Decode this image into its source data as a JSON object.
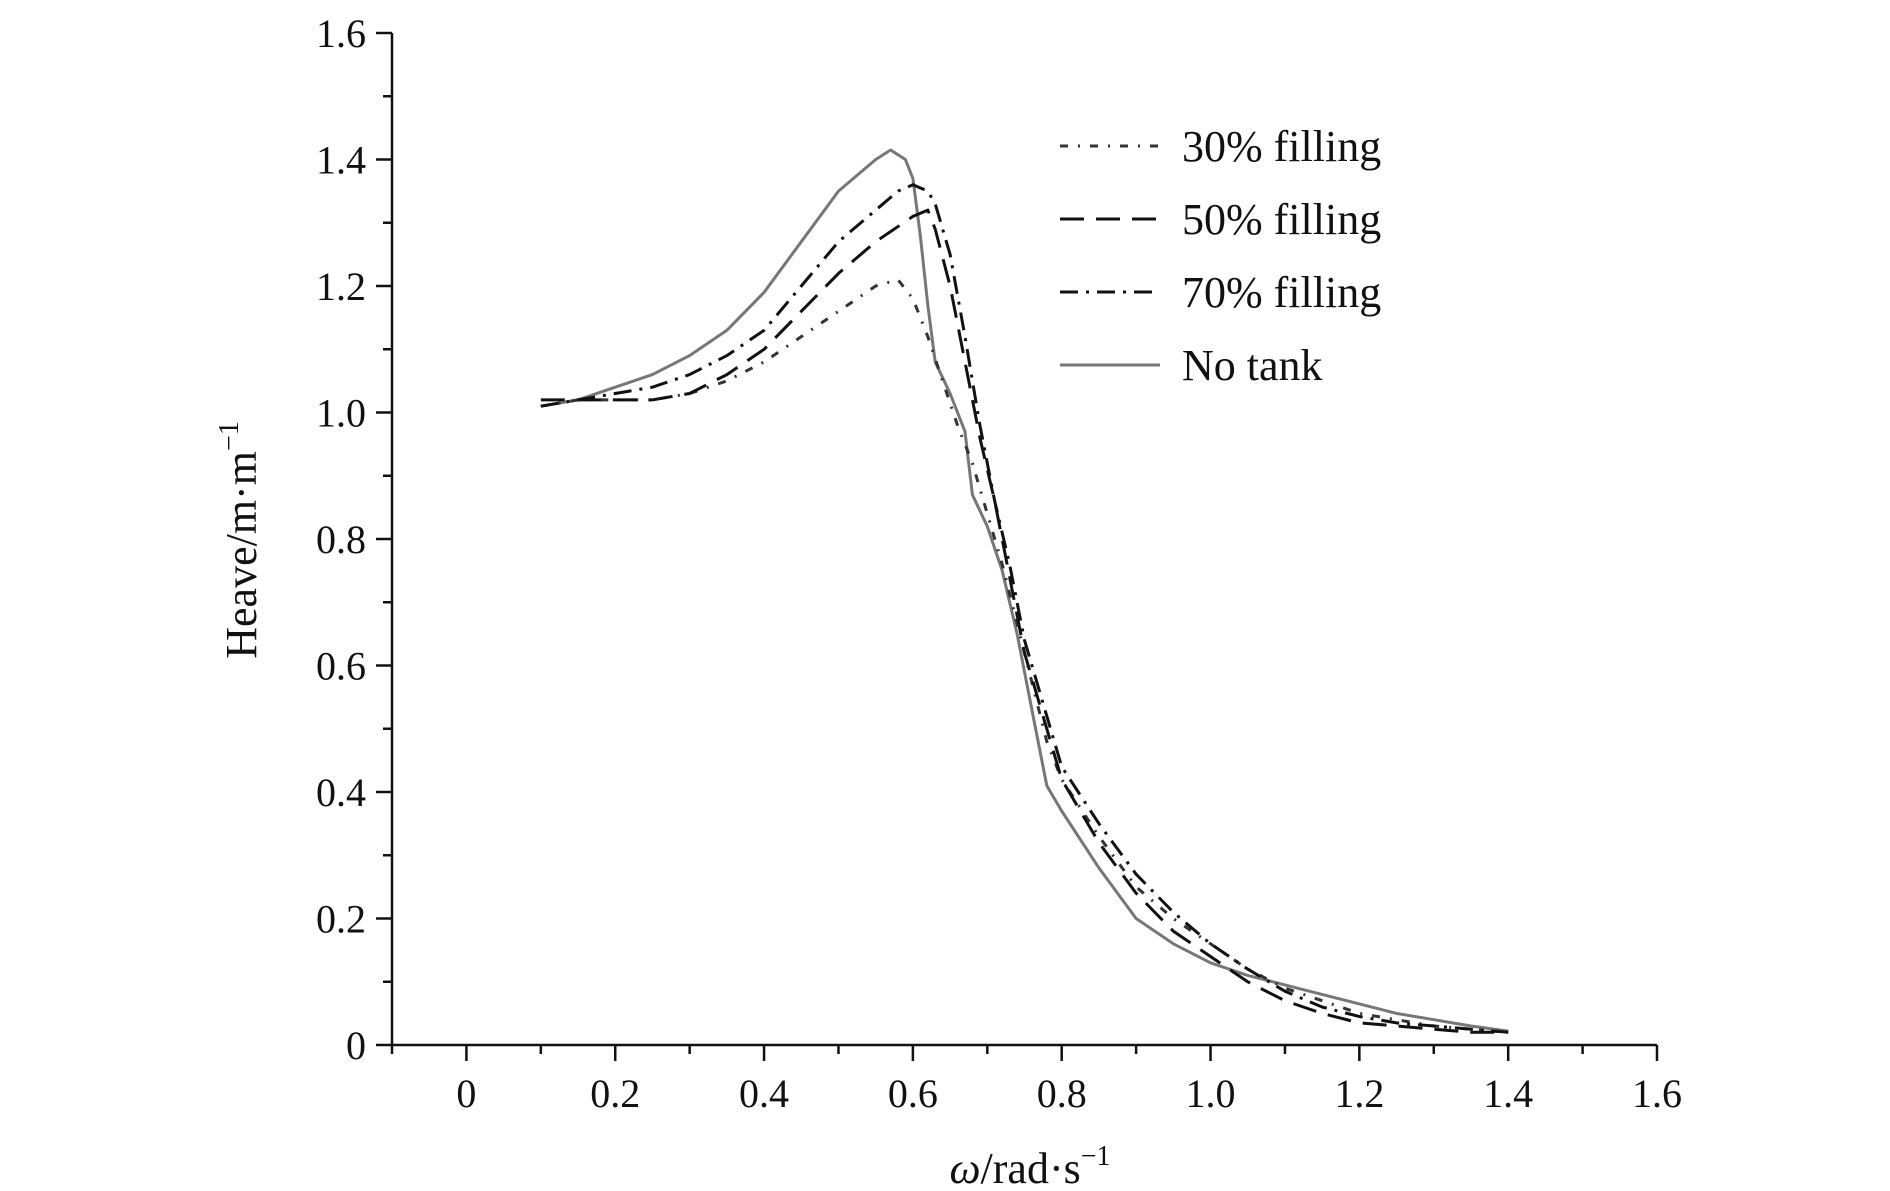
{
  "chart_data": {
    "type": "line",
    "title": "",
    "xlabel": "ω/rad·s",
    "xlabel_sup": "−1",
    "ylabel": "Heave/m·m",
    "ylabel_sup": "−1",
    "xlim": [
      -0.1,
      1.6
    ],
    "ylim": [
      0,
      1.6
    ],
    "xticks": [
      "0",
      "0.2",
      "0.4",
      "0.6",
      "0.8",
      "1.0",
      "1.2",
      "1.4",
      "1.6"
    ],
    "yticks": [
      "0",
      "0.2",
      "0.4",
      "0.6",
      "0.8",
      "1.0",
      "1.2",
      "1.4",
      "1.6"
    ],
    "grid": false,
    "legend_position": "top-right",
    "series": [
      {
        "name": "30% filling",
        "color": "#333333",
        "dash": "8,10,2,10",
        "points": [
          [
            0.1,
            1.01
          ],
          [
            0.15,
            1.02
          ],
          [
            0.2,
            1.02
          ],
          [
            0.25,
            1.02
          ],
          [
            0.3,
            1.03
          ],
          [
            0.35,
            1.05
          ],
          [
            0.4,
            1.08
          ],
          [
            0.45,
            1.12
          ],
          [
            0.5,
            1.16
          ],
          [
            0.55,
            1.2
          ],
          [
            0.58,
            1.21
          ],
          [
            0.6,
            1.18
          ],
          [
            0.62,
            1.12
          ],
          [
            0.64,
            1.05
          ],
          [
            0.66,
            0.98
          ],
          [
            0.68,
            0.92
          ],
          [
            0.7,
            0.84
          ],
          [
            0.72,
            0.76
          ],
          [
            0.75,
            0.62
          ],
          [
            0.78,
            0.48
          ],
          [
            0.8,
            0.42
          ],
          [
            0.85,
            0.33
          ],
          [
            0.9,
            0.25
          ],
          [
            0.95,
            0.2
          ],
          [
            1.0,
            0.16
          ],
          [
            1.05,
            0.12
          ],
          [
            1.1,
            0.09
          ],
          [
            1.15,
            0.07
          ],
          [
            1.2,
            0.05
          ],
          [
            1.25,
            0.04
          ],
          [
            1.3,
            0.03
          ],
          [
            1.35,
            0.025
          ],
          [
            1.4,
            0.02
          ]
        ]
      },
      {
        "name": "50% filling",
        "color": "#111111",
        "dash": "24,12",
        "points": [
          [
            0.1,
            1.02
          ],
          [
            0.15,
            1.02
          ],
          [
            0.2,
            1.02
          ],
          [
            0.25,
            1.02
          ],
          [
            0.3,
            1.03
          ],
          [
            0.35,
            1.06
          ],
          [
            0.4,
            1.1
          ],
          [
            0.45,
            1.16
          ],
          [
            0.5,
            1.22
          ],
          [
            0.55,
            1.27
          ],
          [
            0.6,
            1.31
          ],
          [
            0.62,
            1.32
          ],
          [
            0.63,
            1.29
          ],
          [
            0.65,
            1.2
          ],
          [
            0.67,
            1.08
          ],
          [
            0.69,
            0.96
          ],
          [
            0.71,
            0.86
          ],
          [
            0.73,
            0.74
          ],
          [
            0.75,
            0.62
          ],
          [
            0.78,
            0.5
          ],
          [
            0.8,
            0.42
          ],
          [
            0.85,
            0.32
          ],
          [
            0.9,
            0.24
          ],
          [
            0.95,
            0.18
          ],
          [
            1.0,
            0.14
          ],
          [
            1.05,
            0.1
          ],
          [
            1.1,
            0.07
          ],
          [
            1.15,
            0.05
          ],
          [
            1.2,
            0.035
          ],
          [
            1.25,
            0.03
          ],
          [
            1.3,
            0.025
          ],
          [
            1.35,
            0.02
          ],
          [
            1.4,
            0.02
          ]
        ]
      },
      {
        "name": "70% filling",
        "color": "#111111",
        "dash": "18,8,3,8",
        "points": [
          [
            0.1,
            1.01
          ],
          [
            0.15,
            1.02
          ],
          [
            0.2,
            1.03
          ],
          [
            0.25,
            1.04
          ],
          [
            0.3,
            1.06
          ],
          [
            0.35,
            1.09
          ],
          [
            0.4,
            1.13
          ],
          [
            0.45,
            1.2
          ],
          [
            0.5,
            1.27
          ],
          [
            0.55,
            1.32
          ],
          [
            0.58,
            1.35
          ],
          [
            0.6,
            1.36
          ],
          [
            0.62,
            1.35
          ],
          [
            0.63,
            1.33
          ],
          [
            0.65,
            1.25
          ],
          [
            0.67,
            1.12
          ],
          [
            0.69,
            0.98
          ],
          [
            0.71,
            0.86
          ],
          [
            0.73,
            0.76
          ],
          [
            0.75,
            0.64
          ],
          [
            0.78,
            0.52
          ],
          [
            0.8,
            0.44
          ],
          [
            0.85,
            0.35
          ],
          [
            0.9,
            0.27
          ],
          [
            0.95,
            0.21
          ],
          [
            1.0,
            0.16
          ],
          [
            1.05,
            0.12
          ],
          [
            1.1,
            0.085
          ],
          [
            1.15,
            0.06
          ],
          [
            1.2,
            0.045
          ],
          [
            1.25,
            0.035
          ],
          [
            1.3,
            0.03
          ],
          [
            1.35,
            0.025
          ],
          [
            1.4,
            0.02
          ]
        ]
      },
      {
        "name": "No tank",
        "color": "#777777",
        "dash": "",
        "points": [
          [
            0.1,
            1.01
          ],
          [
            0.15,
            1.02
          ],
          [
            0.2,
            1.04
          ],
          [
            0.25,
            1.06
          ],
          [
            0.3,
            1.09
          ],
          [
            0.35,
            1.13
          ],
          [
            0.4,
            1.19
          ],
          [
            0.45,
            1.27
          ],
          [
            0.5,
            1.35
          ],
          [
            0.55,
            1.4
          ],
          [
            0.57,
            1.415
          ],
          [
            0.59,
            1.4
          ],
          [
            0.6,
            1.37
          ],
          [
            0.61,
            1.28
          ],
          [
            0.62,
            1.17
          ],
          [
            0.63,
            1.08
          ],
          [
            0.65,
            1.03
          ],
          [
            0.67,
            0.97
          ],
          [
            0.68,
            0.87
          ],
          [
            0.7,
            0.82
          ],
          [
            0.72,
            0.75
          ],
          [
            0.74,
            0.65
          ],
          [
            0.76,
            0.53
          ],
          [
            0.78,
            0.41
          ],
          [
            0.8,
            0.37
          ],
          [
            0.85,
            0.28
          ],
          [
            0.9,
            0.2
          ],
          [
            0.95,
            0.16
          ],
          [
            1.0,
            0.13
          ],
          [
            1.05,
            0.11
          ],
          [
            1.1,
            0.095
          ],
          [
            1.15,
            0.08
          ],
          [
            1.2,
            0.065
          ],
          [
            1.25,
            0.05
          ],
          [
            1.3,
            0.04
          ],
          [
            1.35,
            0.03
          ],
          [
            1.4,
            0.022
          ]
        ]
      }
    ]
  }
}
